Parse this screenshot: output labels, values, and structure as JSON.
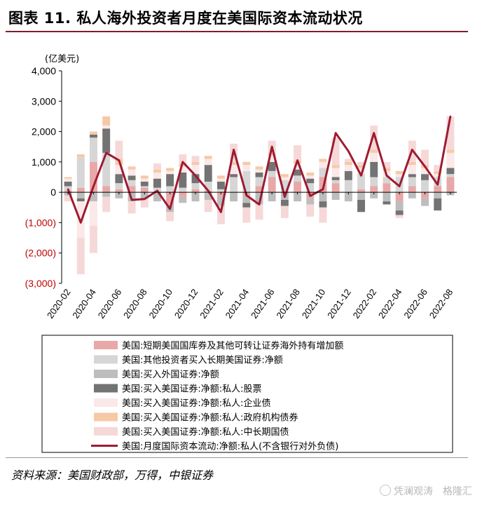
{
  "page": {
    "title": "图表 11. 私人海外投资者月度在美国际资本流动状况",
    "source": "资料来源：美国财政部，万得，中银证券",
    "watermark_left": "凭澜观涛",
    "watermark_right": "格隆汇"
  },
  "chart_data": {
    "type": "bar",
    "unit_label": "(亿美元)",
    "ylim": [
      -3000,
      4000
    ],
    "yticks": [
      {
        "value": 4000,
        "label": "4,000"
      },
      {
        "value": 3000,
        "label": "3,000"
      },
      {
        "value": 2000,
        "label": "2,000"
      },
      {
        "value": 1000,
        "label": "1,000"
      },
      {
        "value": 0,
        "label": "0"
      },
      {
        "value": -1000,
        "label": "(1,000)"
      },
      {
        "value": -2000,
        "label": "(2,000)"
      },
      {
        "value": -3000,
        "label": "(3,000)"
      }
    ],
    "categories": [
      "2020-02",
      "2020-03",
      "2020-04",
      "2020-05",
      "2020-06",
      "2020-07",
      "2020-08",
      "2020-09",
      "2020-10",
      "2020-11",
      "2020-12",
      "2021-01",
      "2021-02",
      "2021-03",
      "2021-04",
      "2021-05",
      "2021-06",
      "2021-07",
      "2021-08",
      "2021-09",
      "2021-10",
      "2021-11",
      "2021-12",
      "2022-01",
      "2022-02",
      "2022-03",
      "2022-04",
      "2022-05",
      "2022-06",
      "2022-07",
      "2022-08"
    ],
    "xtick_labels": [
      "2020-02",
      "2020-04",
      "2020-06",
      "2020-08",
      "2020-10",
      "2020-12",
      "2021-02",
      "2021-04",
      "2021-06",
      "2021-08",
      "2021-10",
      "2021-12",
      "2022-02",
      "2022-04",
      "2022-06",
      "2022-08"
    ],
    "colors": {
      "tbill": "#e8a8a8",
      "other_long": "#d6d6d6",
      "foreign_sec": "#bdbdbd",
      "equity": "#737373",
      "corp": "#fbe8e8",
      "agency": "#f6c9a6",
      "treasury": "#f6d8d8",
      "line": "#9e1b32",
      "neg_tick": "#c00000"
    },
    "series": [
      {
        "name": "美国:短期美国国库券及其他可转让证券海外持有增加额",
        "key": "tbill",
        "kind": "bar",
        "values": [
          50,
          150,
          1000,
          200,
          100,
          200,
          150,
          0,
          -400,
          -150,
          100,
          50,
          -150,
          0,
          -150,
          200,
          500,
          0,
          350,
          -200,
          500,
          300,
          0,
          100,
          200,
          300,
          -300,
          200,
          -200,
          200,
          500
        ]
      },
      {
        "name": "美国:其他投资者买入长期美国证券:净额",
        "key": "other_long",
        "kind": "bar",
        "values": [
          150,
          1000,
          800,
          1100,
          200,
          200,
          50,
          150,
          200,
          150,
          200,
          300,
          100,
          500,
          700,
          300,
          200,
          400,
          200,
          300,
          300,
          100,
          400,
          500,
          300,
          200,
          500,
          300,
          400,
          300,
          100
        ]
      },
      {
        "name": "美国:买入外国证券:净额",
        "key": "foreign_sec",
        "kind": "bar",
        "values": [
          -100,
          -200,
          -300,
          -150,
          -200,
          -300,
          -200,
          -300,
          -250,
          -200,
          -300,
          -250,
          -300,
          -300,
          -200,
          -400,
          -300,
          -250,
          -300,
          -200,
          -300,
          -250,
          -300,
          -250,
          -200,
          -300,
          -300,
          -200,
          -250,
          -200,
          -100
        ]
      },
      {
        "name": "美国:买入美国证券:净额:私人:股票",
        "key": "equity",
        "kind": "bar",
        "values": [
          150,
          -100,
          100,
          800,
          300,
          150,
          150,
          300,
          400,
          500,
          300,
          550,
          250,
          100,
          -150,
          150,
          300,
          -200,
          200,
          150,
          -200,
          100,
          300,
          -400,
          500,
          -100,
          -150,
          100,
          200,
          -400,
          200
        ]
      },
      {
        "name": "美国:买入美国证券:净额:私人:企业债",
        "key": "corp",
        "kind": "bar",
        "values": [
          100,
          -1200,
          -800,
          100,
          300,
          200,
          100,
          200,
          100,
          200,
          300,
          200,
          100,
          300,
          200,
          100,
          200,
          100,
          200,
          100,
          200,
          300,
          200,
          200,
          300,
          200,
          100,
          300,
          200,
          100,
          500
        ]
      },
      {
        "name": "美国:买入美国证券:净额:私人:政府机构债券",
        "key": "agency",
        "kind": "bar",
        "values": [
          50,
          100,
          100,
          300,
          200,
          100,
          100,
          100,
          100,
          100,
          100,
          100,
          100,
          100,
          100,
          100,
          100,
          100,
          100,
          100,
          100,
          100,
          100,
          100,
          100,
          100,
          100,
          100,
          100,
          100,
          100
        ]
      },
      {
        "name": "美国:买入美国证券:净额:私人:中长期国债",
        "key": "treasury",
        "kind": "bar",
        "values": [
          -200,
          -1200,
          -900,
          -500,
          600,
          -400,
          -300,
          200,
          -300,
          300,
          200,
          -400,
          -600,
          600,
          -500,
          -500,
          400,
          -400,
          500,
          -400,
          -500,
          900,
          100,
          100,
          800,
          200,
          -100,
          700,
          500,
          200,
          1100
        ]
      },
      {
        "name": "美国:月度国际资本流动:净额:私人(不含银行对外负债)",
        "key": "line",
        "kind": "line",
        "values": [
          100,
          -1000,
          200,
          1300,
          1050,
          -250,
          -220,
          50,
          -550,
          1000,
          550,
          50,
          -650,
          1400,
          -100,
          -400,
          1500,
          -150,
          1050,
          -120,
          100,
          1950,
          1350,
          550,
          1950,
          550,
          200,
          1400,
          850,
          250,
          2500
        ]
      }
    ]
  }
}
